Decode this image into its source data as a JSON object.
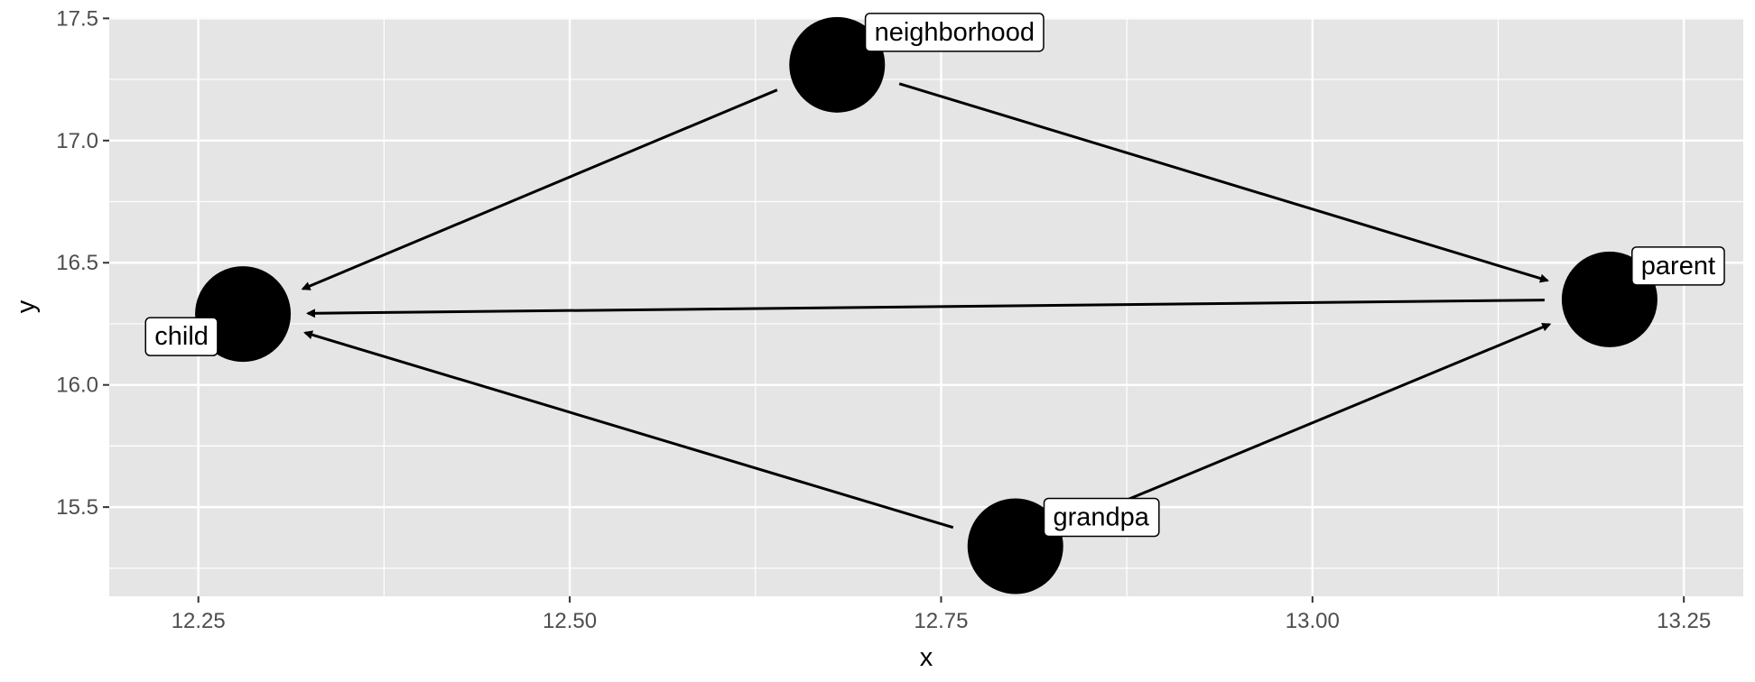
{
  "chart_data": {
    "type": "scatter",
    "title": "",
    "xlabel": "x",
    "ylabel": "y",
    "xlim": [
      12.19,
      13.29
    ],
    "ylim": [
      15.135,
      17.505
    ],
    "x_ticks": [
      12.25,
      12.5,
      12.75,
      13.0,
      13.25
    ],
    "x_tick_labels": [
      "12.25",
      "12.50",
      "12.75",
      "13.00",
      "13.25"
    ],
    "y_ticks": [
      15.5,
      16.0,
      16.5,
      17.0,
      17.5
    ],
    "y_tick_labels": [
      "15.5",
      "16.0",
      "16.5",
      "17.0",
      "17.5"
    ],
    "grid": true,
    "legend": "none",
    "colors": {
      "panel": "#e5e5e5",
      "grid": "#ffffff",
      "node": "#000000",
      "edge": "#000000",
      "label_fill": "#ffffff",
      "tick": "#4d4d4d"
    },
    "nodes": [
      {
        "name": "neighborhood",
        "x": 12.68,
        "y": 17.31
      },
      {
        "name": "child",
        "x": 12.28,
        "y": 16.29
      },
      {
        "name": "parent",
        "x": 13.2,
        "y": 16.35
      },
      {
        "name": "grandpa",
        "x": 12.8,
        "y": 15.34
      }
    ],
    "edges": [
      {
        "from": "neighborhood",
        "to": "child"
      },
      {
        "from": "neighborhood",
        "to": "parent"
      },
      {
        "from": "parent",
        "to": "child"
      },
      {
        "from": "grandpa",
        "to": "child"
      },
      {
        "from": "grandpa",
        "to": "parent"
      }
    ]
  }
}
